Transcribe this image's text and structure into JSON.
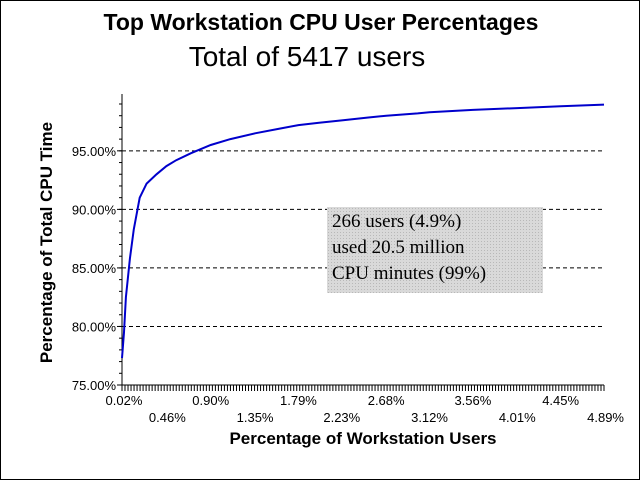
{
  "chart_data": {
    "type": "line",
    "title": "Top Workstation CPU User Percentages",
    "subtitle": "Total of 5417 users",
    "xlabel": "Percentage of Workstation Users",
    "ylabel": "Percentage of Total CPU Time",
    "xlim": [
      0.0,
      4.89
    ],
    "ylim": [
      75.0,
      99.0
    ],
    "grid": {
      "y": true,
      "x": false
    },
    "x_tick_labels_row1": [
      "0.02%",
      "0.90%",
      "1.79%",
      "2.68%",
      "3.56%",
      "4.45%"
    ],
    "x_tick_labels_row1_values": [
      0.02,
      0.9,
      1.79,
      2.68,
      3.56,
      4.45
    ],
    "x_tick_labels_row2": [
      "0.46%",
      "1.35%",
      "2.23%",
      "3.12%",
      "4.01%",
      "4.89%"
    ],
    "x_tick_labels_row2_values": [
      0.46,
      1.35,
      2.23,
      3.12,
      4.01,
      4.89
    ],
    "y_tick_labels": [
      "75.00%",
      "80.00%",
      "85.00%",
      "90.00%",
      "95.00%"
    ],
    "y_tick_values": [
      75,
      80,
      85,
      90,
      95
    ],
    "series": [
      {
        "color": "#0000cc",
        "x": [
          0.0,
          0.02,
          0.04,
          0.08,
          0.12,
          0.18,
          0.25,
          0.35,
          0.45,
          0.55,
          0.7,
          0.9,
          1.1,
          1.35,
          1.6,
          1.79,
          2.0,
          2.23,
          2.5,
          2.68,
          3.0,
          3.12,
          3.56,
          4.01,
          4.45,
          4.89
        ],
        "y": [
          77.3,
          79.5,
          82.5,
          85.8,
          88.3,
          91.0,
          92.2,
          93.0,
          93.7,
          94.2,
          94.8,
          95.5,
          96.0,
          96.5,
          96.9,
          97.2,
          97.4,
          97.6,
          97.85,
          98.0,
          98.2,
          98.3,
          98.5,
          98.65,
          98.8,
          98.95
        ]
      }
    ],
    "annotation": [
      "266 users (4.9%)",
      "used 20.5 million",
      "CPU minutes (99%)"
    ]
  }
}
